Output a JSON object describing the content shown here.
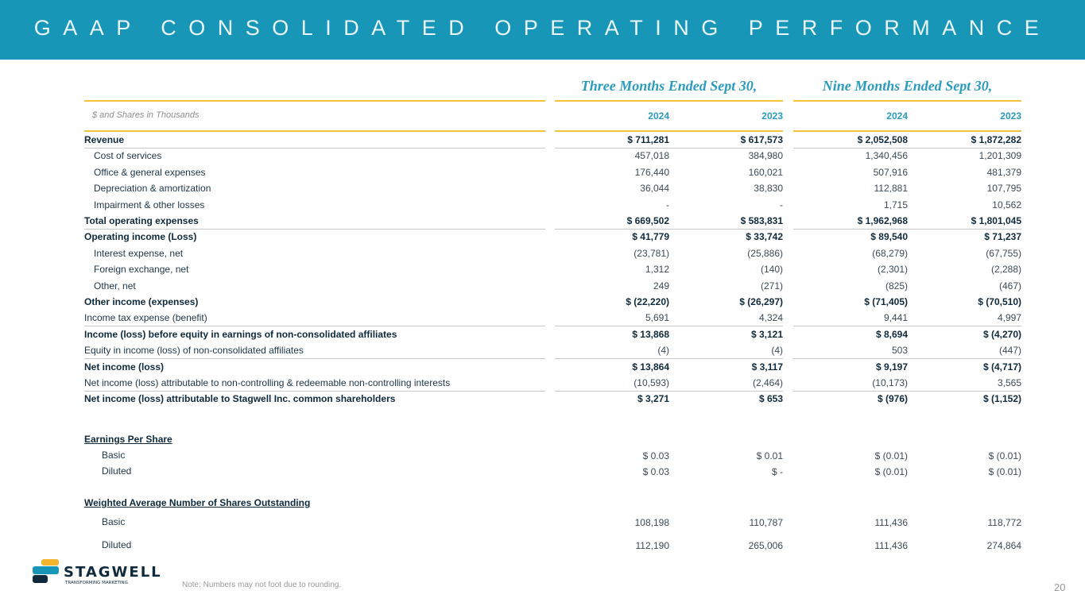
{
  "title": "GAAP CONSOLIDATED OPERATING PERFORMANCE",
  "periods": [
    "Three Months Ended Sept 30,",
    "Nine Months Ended Sept 30,"
  ],
  "units_label": "$ and Shares in Thousands",
  "years": [
    "2024",
    "2023",
    "2024",
    "2023"
  ],
  "rows": [
    {
      "label": "Revenue",
      "values": [
        "$ 711,281",
        "$ 617,573",
        "$ 2,052,508",
        "$ 1,872,282"
      ]
    },
    {
      "label": "Cost of services",
      "values": [
        "457,018",
        "384,980",
        "1,340,456",
        "1,201,309"
      ]
    },
    {
      "label": "Office & general expenses",
      "values": [
        "176,440",
        "160,021",
        "507,916",
        "481,379"
      ]
    },
    {
      "label": "Depreciation & amortization",
      "values": [
        "36,044",
        "38,830",
        "112,881",
        "107,795"
      ]
    },
    {
      "label": "Impairment & other losses",
      "values": [
        "-",
        "-",
        "1,715",
        "10,562"
      ]
    },
    {
      "label": "Total operating expenses",
      "values": [
        "$ 669,502",
        "$ 583,831",
        "$ 1,962,968",
        "$ 1,801,045"
      ]
    },
    {
      "label": "Operating income (Loss)",
      "values": [
        "$ 41,779",
        "$ 33,742",
        "$ 89,540",
        "$ 71,237"
      ]
    },
    {
      "label": "Interest expense, net",
      "values": [
        "(23,781)",
        "(25,886)",
        "(68,279)",
        "(67,755)"
      ]
    },
    {
      "label": "Foreign exchange, net",
      "values": [
        "1,312",
        "(140)",
        "(2,301)",
        "(2,288)"
      ]
    },
    {
      "label": "Other, net",
      "values": [
        "249",
        "(271)",
        "(825)",
        "(467)"
      ]
    },
    {
      "label": "Other income (expenses)",
      "values": [
        "$ (22,220)",
        "$ (26,297)",
        "$ (71,405)",
        "$ (70,510)"
      ]
    },
    {
      "label": "Income tax expense (benefit)",
      "values": [
        "5,691",
        "4,324",
        "9,441",
        "4,997"
      ]
    },
    {
      "label": "Income (loss) before equity in earnings of non-consolidated affiliates",
      "values": [
        "$ 13,868",
        "$ 3,121",
        "$ 8,694",
        "$ (4,270)"
      ]
    },
    {
      "label": "Equity in income (loss) of non-consolidated affiliates",
      "values": [
        "(4)",
        "(4)",
        "503",
        "(447)"
      ]
    },
    {
      "label": "Net income (loss)",
      "values": [
        "$ 13,864",
        "$ 3,117",
        "$ 9,197",
        "$ (4,717)"
      ]
    },
    {
      "label": "Net income (loss) attributable to non-controlling & redeemable non-controlling interests",
      "values": [
        "(10,593)",
        "(2,464)",
        "(10,173)",
        "3,565"
      ]
    },
    {
      "label": "Net income (loss) attributable to Stagwell Inc. common shareholders",
      "values": [
        "$ 3,271",
        "$ 653",
        "$ (976)",
        "$ (1,152)"
      ]
    }
  ],
  "eps": {
    "heading": "Earnings Per Share",
    "rows": [
      {
        "label": "Basic",
        "values": [
          "$ 0.03",
          "$ 0.01",
          "$ (0.01)",
          "$ (0.01)"
        ]
      },
      {
        "label": "Diluted",
        "values": [
          "$ 0.03",
          "$ -",
          "$ (0.01)",
          "$ (0.01)"
        ]
      }
    ]
  },
  "shares": {
    "heading": "Weighted Average Number of Shares Outstanding",
    "rows": [
      {
        "label": "Basic",
        "values": [
          "108,198",
          "110,787",
          "111,436",
          "118,772"
        ]
      },
      {
        "label": "Diluted",
        "values": [
          "112,190",
          "265,006",
          "111,436",
          "274,864"
        ]
      }
    ]
  },
  "logo": {
    "name": "STAGWELL",
    "tagline": "TRANSFORMING MARKETING"
  },
  "note": "Note: Numbers may not foot due to rounding.",
  "page_number": "20",
  "colors": {
    "banner": "#1796b8",
    "accent_line": "#f5c237",
    "year": "#2a9bbf",
    "text": "#0f2a3c"
  }
}
